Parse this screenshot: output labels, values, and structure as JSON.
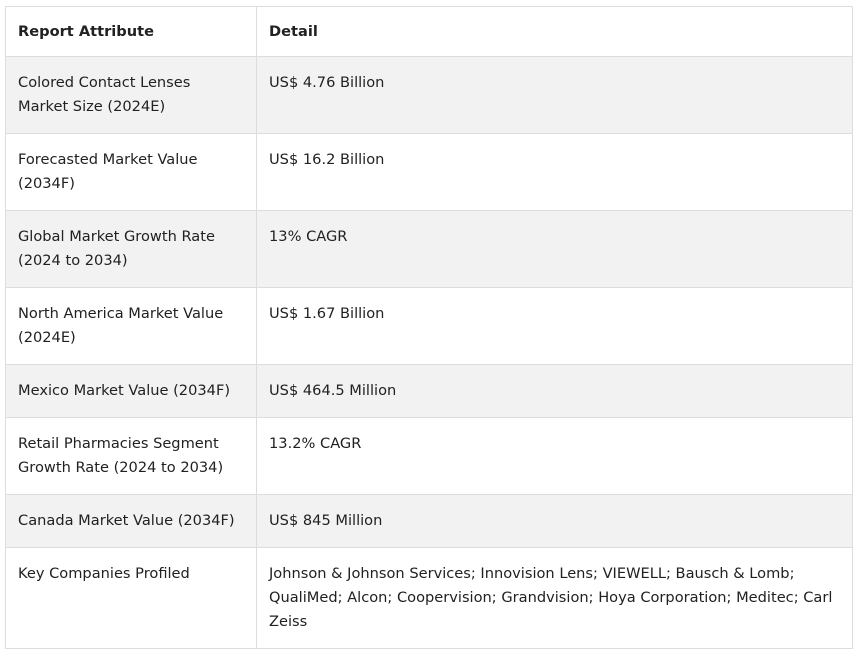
{
  "table": {
    "headers": [
      "Report Attribute",
      "Detail"
    ],
    "rows": [
      {
        "attribute": "Colored Contact Lenses Market Size (2024E)",
        "detail": "US$ 4.76 Billion"
      },
      {
        "attribute": "Forecasted Market Value (2034F)",
        "detail": "US$ 16.2 Billion"
      },
      {
        "attribute": "Global Market Growth Rate (2024 to 2034)",
        "detail": "13% CAGR"
      },
      {
        "attribute": "North America Market Value (2024E)",
        "detail": "US$ 1.67 Billion"
      },
      {
        "attribute": "Mexico Market Value (2034F)",
        "detail": "US$ 464.5 Million"
      },
      {
        "attribute": "Retail Pharmacies Segment Growth Rate (2024 to 2034)",
        "detail": "13.2% CAGR"
      },
      {
        "attribute": "Canada Market Value (2034F)",
        "detail": "US$ 845 Million"
      },
      {
        "attribute": "Key Companies Profiled",
        "detail": "Johnson & Johnson Services; Innovision Lens; VIEWELL; Bausch & Lomb; QualiMed; Alcon; Coopervision; Grandvision; Hoya Corporation; Meditec; Carl Zeiss"
      }
    ]
  }
}
